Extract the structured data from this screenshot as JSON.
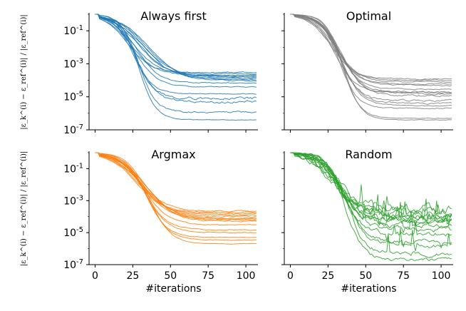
{
  "chart_data": [
    {
      "type": "line",
      "title": "Always first",
      "ylabel": "|ε_k^(i) − ε_ref^(i)| / |ε_ref^(i)|",
      "xlabel": "",
      "yscale": "log",
      "xlim": [
        -4,
        108
      ],
      "ylim": [
        1e-07,
        1.0
      ],
      "yticks": [
        1e-07,
        1e-05,
        0.001,
        0.1
      ],
      "ytick_labels": [
        {
          "base": "10",
          "exp": "-7"
        },
        {
          "base": "10",
          "exp": "-5"
        },
        {
          "base": "10",
          "exp": "-3"
        },
        {
          "base": "10",
          "exp": "-1"
        }
      ],
      "xticks": [
        0,
        25,
        50,
        75,
        100
      ],
      "xtick_labels_visible": false,
      "color": "#1f77b4",
      "series": [
        {
          "start": 1.0,
          "knee": 30,
          "plateau": 0.0003,
          "rate": 0.12,
          "noise": 0.05
        },
        {
          "start": 1.0,
          "knee": 35,
          "plateau": 0.00025,
          "rate": 0.11,
          "noise": 0.05
        },
        {
          "start": 1.0,
          "knee": 40,
          "plateau": 0.0002,
          "rate": 0.1,
          "noise": 0.05
        },
        {
          "start": 1.0,
          "knee": 42,
          "plateau": 0.00016,
          "rate": 0.1,
          "noise": 0.05
        },
        {
          "start": 1.0,
          "knee": 45,
          "plateau": 0.00013,
          "rate": 0.1,
          "noise": 0.05
        },
        {
          "start": 1.0,
          "knee": 48,
          "plateau": 0.00011,
          "rate": 0.09,
          "noise": 0.05
        },
        {
          "start": 1.0,
          "knee": 50,
          "plateau": 9e-05,
          "rate": 0.09,
          "noise": 0.05
        },
        {
          "start": 1.0,
          "knee": 38,
          "plateau": 7e-05,
          "rate": 0.12,
          "noise": 0.04
        },
        {
          "start": 1.0,
          "knee": 36,
          "plateau": 4e-05,
          "rate": 0.12,
          "noise": 0.04
        },
        {
          "start": 1.0,
          "knee": 35,
          "plateau": 1.5e-05,
          "rate": 0.14,
          "noise": 0.04
        },
        {
          "start": 1.0,
          "knee": 37,
          "plateau": 8e-06,
          "rate": 0.14,
          "noise": 0.12
        },
        {
          "start": 1.0,
          "knee": 38,
          "plateau": 5e-06,
          "rate": 0.14,
          "noise": 0.12
        },
        {
          "start": 1.0,
          "knee": 40,
          "plateau": 1.2e-06,
          "rate": 0.16,
          "noise": 0.08
        },
        {
          "start": 1.0,
          "knee": 40,
          "plateau": 4e-07,
          "rate": 0.16,
          "noise": 0.03
        },
        {
          "start": 1.0,
          "knee": 33,
          "plateau": 0.0002,
          "rate": 0.11,
          "noise": 0.05
        },
        {
          "start": 1.0,
          "knee": 44,
          "plateau": 0.00015,
          "rate": 0.09,
          "noise": 0.05
        }
      ]
    },
    {
      "type": "line",
      "title": "Optimal",
      "ylabel": "",
      "xlabel": "",
      "yscale": "log",
      "xlim": [
        -4,
        108
      ],
      "ylim": [
        1e-07,
        1.0
      ],
      "yticks": [
        1e-07,
        1e-05,
        0.001,
        0.1
      ],
      "ytick_labels_visible": false,
      "xticks": [
        0,
        25,
        50,
        75,
        100
      ],
      "xtick_labels_visible": false,
      "color": "#7f7f7f",
      "series": [
        {
          "start": 1.0,
          "knee": 38,
          "plateau": 0.00012,
          "rate": 0.12,
          "noise": 0.05
        },
        {
          "start": 1.0,
          "knee": 40,
          "plateau": 0.0001,
          "rate": 0.12,
          "noise": 0.05
        },
        {
          "start": 1.0,
          "knee": 42,
          "plateau": 8e-05,
          "rate": 0.12,
          "noise": 0.05
        },
        {
          "start": 1.0,
          "knee": 44,
          "plateau": 5e-05,
          "rate": 0.13,
          "noise": 0.05
        },
        {
          "start": 1.0,
          "knee": 45,
          "plateau": 3e-05,
          "rate": 0.13,
          "noise": 0.05
        },
        {
          "start": 1.0,
          "knee": 46,
          "plateau": 2e-05,
          "rate": 0.13,
          "noise": 0.08
        },
        {
          "start": 1.0,
          "knee": 47,
          "plateau": 1.5e-05,
          "rate": 0.13,
          "noise": 0.08
        },
        {
          "start": 1.0,
          "knee": 48,
          "plateau": 1.2e-05,
          "rate": 0.13,
          "noise": 0.08
        },
        {
          "start": 1.0,
          "knee": 45,
          "plateau": 6e-06,
          "rate": 0.14,
          "noise": 0.08
        },
        {
          "start": 1.0,
          "knee": 46,
          "plateau": 4e-06,
          "rate": 0.14,
          "noise": 0.08
        },
        {
          "start": 1.0,
          "knee": 47,
          "plateau": 3e-06,
          "rate": 0.14,
          "noise": 0.05
        },
        {
          "start": 1.0,
          "knee": 45,
          "plateau": 2e-06,
          "rate": 0.15,
          "noise": 0.05
        },
        {
          "start": 1.0,
          "knee": 48,
          "plateau": 5e-07,
          "rate": 0.16,
          "noise": 0.03
        },
        {
          "start": 1.0,
          "knee": 49,
          "plateau": 4e-07,
          "rate": 0.16,
          "noise": 0.03
        },
        {
          "start": 1.0,
          "knee": 41,
          "plateau": 1.8e-05,
          "rate": 0.13,
          "noise": 0.06
        },
        {
          "start": 1.0,
          "knee": 43,
          "plateau": 6e-05,
          "rate": 0.13,
          "noise": 0.05
        }
      ]
    },
    {
      "type": "line",
      "title": "Argmax",
      "ylabel": "|ε_k^(i) − ε_ref^(i)| / |ε_ref^(i)|",
      "xlabel": "#iterations",
      "yscale": "log",
      "xlim": [
        -4,
        108
      ],
      "ylim": [
        1e-07,
        1.0
      ],
      "yticks": [
        1e-07,
        1e-05,
        0.001,
        0.1
      ],
      "ytick_labels": [
        {
          "base": "10",
          "exp": "-7"
        },
        {
          "base": "10",
          "exp": "-5"
        },
        {
          "base": "10",
          "exp": "-3"
        },
        {
          "base": "10",
          "exp": "-1"
        }
      ],
      "xticks": [
        0,
        25,
        50,
        75,
        100
      ],
      "xtick_labels": [
        "0",
        "25",
        "50",
        "75",
        "100"
      ],
      "color": "#ff7f0e",
      "series": [
        {
          "start": 1.0,
          "knee": 38,
          "plateau": 0.00018,
          "rate": 0.1,
          "noise": 0.05
        },
        {
          "start": 1.0,
          "knee": 40,
          "plateau": 0.00015,
          "rate": 0.1,
          "noise": 0.05
        },
        {
          "start": 1.0,
          "knee": 42,
          "plateau": 0.00012,
          "rate": 0.1,
          "noise": 0.05
        },
        {
          "start": 1.0,
          "knee": 44,
          "plateau": 0.0001,
          "rate": 0.1,
          "noise": 0.05
        },
        {
          "start": 1.0,
          "knee": 46,
          "plateau": 8e-05,
          "rate": 0.1,
          "noise": 0.05
        },
        {
          "start": 1.0,
          "knee": 47,
          "plateau": 6e-05,
          "rate": 0.1,
          "noise": 0.05
        },
        {
          "start": 1.0,
          "knee": 48,
          "plateau": 5e-05,
          "rate": 0.1,
          "noise": 0.05
        },
        {
          "start": 1.0,
          "knee": 45,
          "plateau": 3e-05,
          "rate": 0.11,
          "noise": 0.04
        },
        {
          "start": 1.0,
          "knee": 45,
          "plateau": 1.5e-05,
          "rate": 0.12,
          "noise": 0.04
        },
        {
          "start": 1.0,
          "knee": 46,
          "plateau": 1e-05,
          "rate": 0.12,
          "noise": 0.04
        },
        {
          "start": 1.0,
          "knee": 47,
          "plateau": 5e-06,
          "rate": 0.13,
          "noise": 0.03
        },
        {
          "start": 1.0,
          "knee": 48,
          "plateau": 3.5e-06,
          "rate": 0.13,
          "noise": 0.03
        },
        {
          "start": 1.0,
          "knee": 50,
          "plateau": 2e-06,
          "rate": 0.13,
          "noise": 0.03
        },
        {
          "start": 1.0,
          "knee": 41,
          "plateau": 0.00022,
          "rate": 0.1,
          "noise": 0.06
        },
        {
          "start": 1.0,
          "knee": 43,
          "plateau": 7e-05,
          "rate": 0.1,
          "noise": 0.05
        }
      ]
    },
    {
      "type": "line",
      "title": "Random",
      "ylabel": "",
      "xlabel": "#iterations",
      "yscale": "log",
      "xlim": [
        -4,
        108
      ],
      "ylim": [
        1e-07,
        1.0
      ],
      "yticks": [
        1e-07,
        1e-05,
        0.001,
        0.1
      ],
      "ytick_labels_visible": false,
      "xticks": [
        0,
        25,
        50,
        75,
        100
      ],
      "xtick_labels": [
        "0",
        "25",
        "50",
        "75",
        "100"
      ],
      "color": "#2ca02c",
      "series": [
        {
          "start": 1.0,
          "knee": 38,
          "plateau": 0.0002,
          "rate": 0.11,
          "noise": 0.35
        },
        {
          "start": 1.0,
          "knee": 40,
          "plateau": 0.00015,
          "rate": 0.11,
          "noise": 0.35
        },
        {
          "start": 1.0,
          "knee": 42,
          "plateau": 0.00012,
          "rate": 0.11,
          "noise": 0.35
        },
        {
          "start": 1.0,
          "knee": 44,
          "plateau": 9e-05,
          "rate": 0.11,
          "noise": 0.35
        },
        {
          "start": 1.0,
          "knee": 45,
          "plateau": 6e-05,
          "rate": 0.11,
          "noise": 0.3
        },
        {
          "start": 1.0,
          "knee": 46,
          "plateau": 4e-05,
          "rate": 0.12,
          "noise": 0.3
        },
        {
          "start": 1.0,
          "knee": 47,
          "plateau": 2.5e-05,
          "rate": 0.12,
          "noise": 0.3
        },
        {
          "start": 1.0,
          "knee": 48,
          "plateau": 1.5e-05,
          "rate": 0.12,
          "noise": 0.25
        },
        {
          "start": 1.0,
          "knee": 49,
          "plateau": 8e-06,
          "rate": 0.13,
          "noise": 0.25
        },
        {
          "start": 1.0,
          "knee": 50,
          "plateau": 3e-06,
          "rate": 0.14,
          "noise": 0.2
        },
        {
          "start": 1.0,
          "knee": 51,
          "plateau": 1.5e-06,
          "rate": 0.14,
          "noise": 0.2
        },
        {
          "start": 1.0,
          "knee": 52,
          "plateau": 5e-07,
          "rate": 0.15,
          "noise": 0.2
        },
        {
          "start": 1.0,
          "knee": 50,
          "plateau": 2e-07,
          "rate": 0.15,
          "noise": 0.15
        },
        {
          "start": 1.0,
          "knee": 43,
          "plateau": 0.0003,
          "rate": 0.11,
          "noise": 0.4
        },
        {
          "start": 1.0,
          "knee": 47,
          "plateau": 7e-05,
          "rate": 0.12,
          "noise": 0.35
        }
      ]
    }
  ]
}
